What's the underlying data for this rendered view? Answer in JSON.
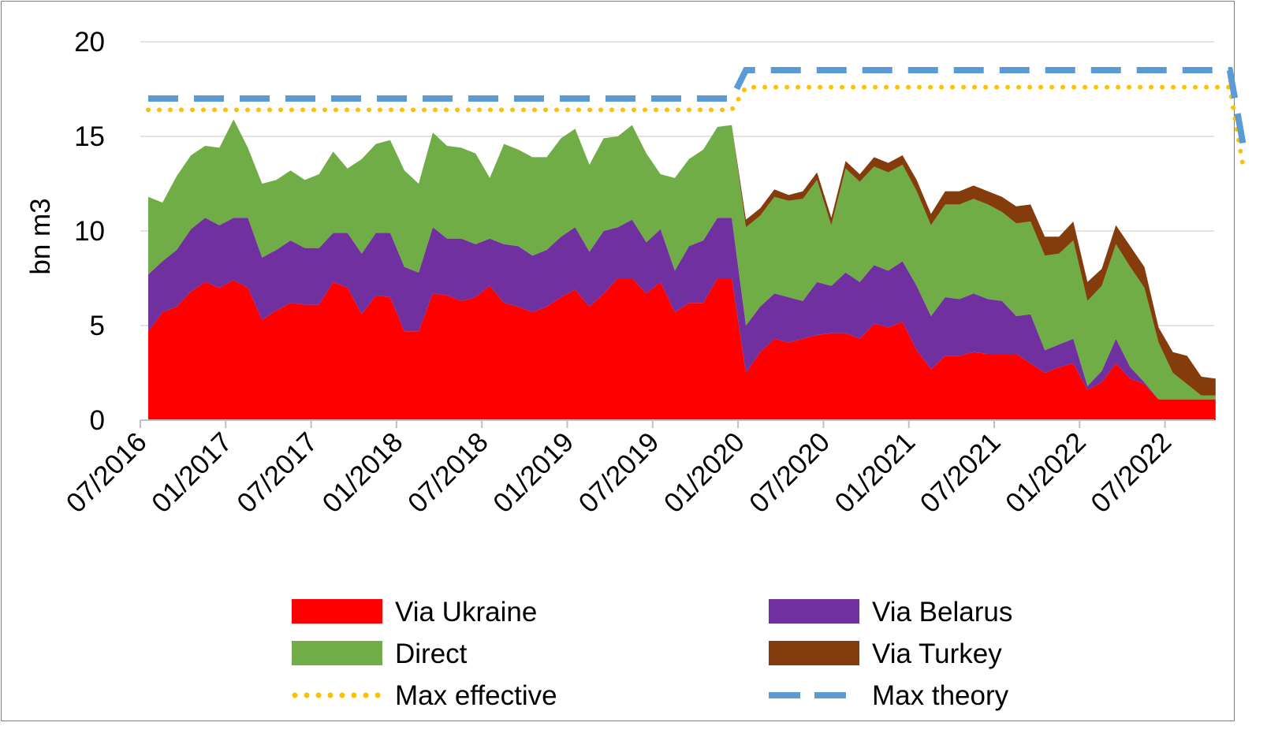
{
  "chart_data": {
    "type": "area",
    "ylabel": "bn m3",
    "ylim": [
      0,
      20
    ],
    "yticks": [
      "0",
      "5",
      "10",
      "15",
      "20"
    ],
    "xticks": [
      "07/2016",
      "01/2017",
      "07/2017",
      "01/2018",
      "07/2018",
      "01/2019",
      "07/2019",
      "01/2020",
      "07/2020",
      "01/2021",
      "07/2021",
      "01/2022",
      "07/2022"
    ],
    "grid": "horizontal",
    "legend_position": "bottom",
    "x_start": "07/2016",
    "x_months": 76,
    "series": [
      {
        "name": "Via Ukraine",
        "color": "#ff0000",
        "values": [
          4.7,
          5.7,
          6.0,
          6.8,
          7.3,
          7.0,
          7.4,
          7.0,
          5.3,
          5.8,
          6.2,
          6.1,
          6.1,
          7.3,
          7.0,
          5.6,
          6.6,
          6.5,
          4.7,
          4.7,
          6.7,
          6.6,
          6.3,
          6.5,
          7.1,
          6.2,
          6.0,
          5.7,
          6.0,
          6.5,
          6.9,
          6.0,
          6.7,
          7.5,
          7.5,
          6.7,
          7.3,
          5.7,
          6.2,
          6.2,
          7.5,
          7.5,
          2.5,
          3.6,
          4.3,
          4.1,
          4.3,
          4.5,
          4.6,
          4.6,
          4.3,
          5.1,
          4.9,
          5.2,
          3.7,
          2.7,
          3.4,
          3.4,
          3.6,
          3.5,
          3.5,
          3.5,
          3.0,
          2.5,
          2.8,
          3.0,
          1.6,
          2.0,
          3.0,
          2.2,
          1.9,
          1.1,
          1.1,
          1.1,
          1.1,
          1.1
        ]
      },
      {
        "name": "Via Belarus",
        "color": "#7030a0",
        "values": [
          3.0,
          2.7,
          3.0,
          3.3,
          3.4,
          3.3,
          3.3,
          3.7,
          3.3,
          3.2,
          3.3,
          3.0,
          3.0,
          2.6,
          2.9,
          3.2,
          3.3,
          3.4,
          3.4,
          3.1,
          3.5,
          3.0,
          3.3,
          2.8,
          2.5,
          3.1,
          3.2,
          3.0,
          3.0,
          3.2,
          3.3,
          2.9,
          3.3,
          2.7,
          3.1,
          2.7,
          2.8,
          2.2,
          3.0,
          3.3,
          3.2,
          3.2,
          2.5,
          2.4,
          2.4,
          2.4,
          2.0,
          2.8,
          2.5,
          3.2,
          3.0,
          3.1,
          3.0,
          3.2,
          3.4,
          2.8,
          3.1,
          3.0,
          3.1,
          2.9,
          2.8,
          2.0,
          2.6,
          1.2,
          1.2,
          1.3,
          0.2,
          0.6,
          1.3,
          0.6,
          0.1,
          0.0,
          0.0,
          0.0,
          0.0,
          0.0
        ]
      },
      {
        "name": "Direct",
        "color": "#70ad47",
        "values": [
          4.1,
          3.1,
          3.9,
          3.9,
          3.8,
          4.1,
          5.2,
          3.7,
          3.9,
          3.7,
          3.7,
          3.6,
          3.9,
          4.3,
          3.4,
          5.0,
          4.7,
          4.9,
          5.1,
          4.7,
          5.0,
          4.9,
          4.8,
          4.8,
          3.2,
          5.3,
          5.1,
          5.2,
          4.9,
          5.2,
          5.2,
          4.6,
          4.9,
          4.8,
          5.0,
          4.7,
          2.9,
          4.9,
          4.6,
          4.8,
          4.8,
          4.9,
          5.2,
          4.8,
          5.1,
          5.1,
          5.4,
          5.4,
          3.2,
          5.5,
          5.3,
          5.2,
          5.2,
          5.1,
          5.0,
          4.8,
          4.9,
          5.0,
          5.0,
          5.0,
          4.7,
          4.9,
          4.9,
          5.0,
          4.8,
          5.2,
          4.5,
          4.5,
          5.0,
          5.3,
          5.0,
          3.0,
          1.4,
          0.8,
          0.2,
          0.2
        ]
      },
      {
        "name": "Via Turkey",
        "color": "#843c0c",
        "values": [
          0,
          0,
          0,
          0,
          0,
          0,
          0,
          0,
          0,
          0,
          0,
          0,
          0,
          0,
          0,
          0,
          0,
          0,
          0,
          0,
          0,
          0,
          0,
          0,
          0,
          0,
          0,
          0,
          0,
          0,
          0,
          0,
          0,
          0,
          0,
          0,
          0,
          0,
          0,
          0,
          0,
          0,
          0.4,
          0.4,
          0.4,
          0.3,
          0.4,
          0.4,
          0.4,
          0.4,
          0.4,
          0.5,
          0.5,
          0.5,
          0.6,
          0.6,
          0.7,
          0.7,
          0.7,
          0.7,
          0.8,
          0.9,
          0.9,
          1.0,
          0.9,
          1.0,
          1.0,
          0.9,
          1.0,
          1.1,
          1.1,
          0.8,
          1.1,
          1.5,
          1.0,
          0.9
        ]
      }
    ],
    "capacity_lines": [
      {
        "name": "Max effective",
        "color": "#ffc000",
        "style": "dotted",
        "points": [
          [
            0,
            16.4
          ],
          [
            41,
            16.4
          ],
          [
            42,
            17.6
          ],
          [
            76,
            17.6
          ],
          [
            77,
            13.1
          ]
        ]
      },
      {
        "name": "Max theory",
        "color": "#5b9bd5",
        "style": "dashed",
        "points": [
          [
            0,
            17.0
          ],
          [
            41,
            17.0
          ],
          [
            42,
            18.5
          ],
          [
            76,
            18.5
          ],
          [
            77,
            14.3
          ]
        ]
      }
    ]
  },
  "legend": [
    {
      "label": "Via Ukraine",
      "kind": "swatch",
      "color": "#ff0000"
    },
    {
      "label": "Via Belarus",
      "kind": "swatch",
      "color": "#7030a0"
    },
    {
      "label": "Direct",
      "kind": "swatch",
      "color": "#70ad47"
    },
    {
      "label": "Via Turkey",
      "kind": "swatch",
      "color": "#843c0c"
    },
    {
      "label": "Max effective",
      "kind": "dotted",
      "color": "#ffc000"
    },
    {
      "label": "Max theory",
      "kind": "dashed",
      "color": "#5b9bd5"
    }
  ]
}
